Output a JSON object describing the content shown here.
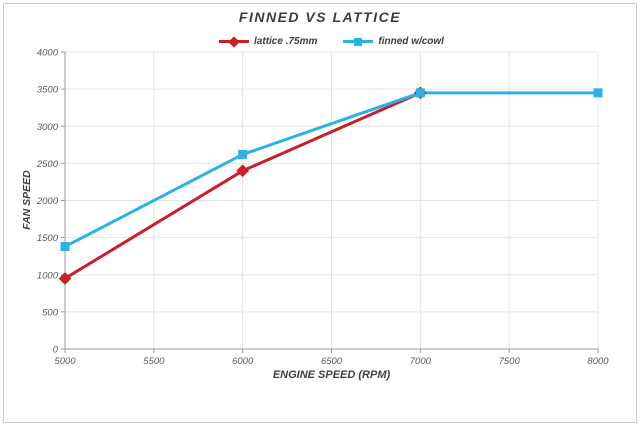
{
  "page": {
    "background": "#ffffff",
    "frame_border_color": "#c9c9c9"
  },
  "chart_data": {
    "type": "line",
    "title": "FINNED VS LATTICE",
    "xlabel": "ENGINE SPEED (RPM)",
    "ylabel": "FAN SPEED",
    "xlim": [
      5000,
      8000
    ],
    "ylim": [
      0,
      4000
    ],
    "xticks": [
      5000,
      5500,
      6000,
      6500,
      7000,
      7500,
      8000
    ],
    "yticks": [
      0,
      500,
      1000,
      1500,
      2000,
      2500,
      3000,
      3500,
      4000
    ],
    "grid": true,
    "legend_position": "top-center",
    "colors": {
      "grid": "#e4e4e4",
      "axis": "#9b9b9b",
      "tick_label": "#595959",
      "title": "#3d3d3d"
    },
    "series": [
      {
        "name": "lattice .75mm",
        "color": "#c7202a",
        "marker": "diamond",
        "x": [
          5000,
          6000,
          7000
        ],
        "y": [
          950,
          2400,
          3450
        ]
      },
      {
        "name": "finned w/cowl",
        "color": "#2bb1e3",
        "marker": "square",
        "x": [
          5000,
          6000,
          7000,
          8000
        ],
        "y": [
          1380,
          2620,
          3450,
          3450
        ]
      }
    ]
  }
}
